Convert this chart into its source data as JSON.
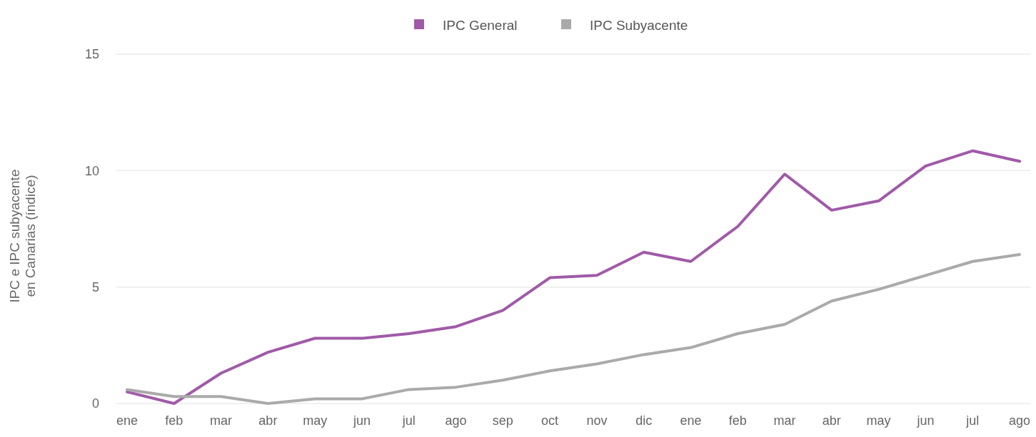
{
  "chart_data": {
    "type": "line",
    "ylabel": "IPC e IPC subyacente\nen Canarias (índice)",
    "categories": [
      "ene",
      "feb",
      "mar",
      "abr",
      "may",
      "jun",
      "jul",
      "ago",
      "sep",
      "oct",
      "nov",
      "dic",
      "ene",
      "feb",
      "mar",
      "abr",
      "may",
      "jun",
      "jul",
      "ago"
    ],
    "series": [
      {
        "name": "IPC General",
        "color": "#a05aa8",
        "values": [
          0.5,
          0,
          1.3,
          2.2,
          2.8,
          2.8,
          3.0,
          3.3,
          4.0,
          5.4,
          5.5,
          6.5,
          6.1,
          7.6,
          9.85,
          8.3,
          8.7,
          10.2,
          10.85,
          10.4
        ]
      },
      {
        "name": "IPC Subyacente",
        "color": "#aaaaaa",
        "values": [
          0.6,
          0.3,
          0.3,
          0,
          0.2,
          0.2,
          0.6,
          0.7,
          1.0,
          1.4,
          1.7,
          2.1,
          2.4,
          3.0,
          3.4,
          4.4,
          4.9,
          5.5,
          6.1,
          6.4
        ]
      }
    ],
    "ylim": [
      0,
      15
    ],
    "yticks": [
      0,
      5,
      10,
      15
    ],
    "grid": "y",
    "legend": "top",
    "marker": "none",
    "line_style": "solid"
  }
}
